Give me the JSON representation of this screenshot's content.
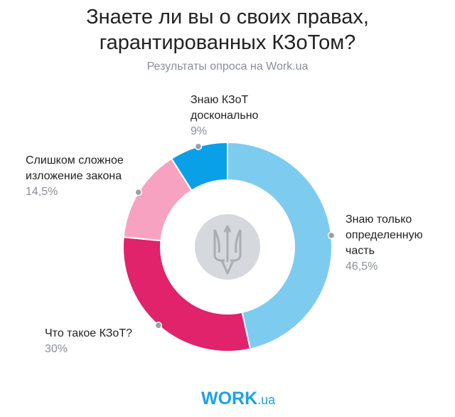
{
  "title_line1": "Знаете ли вы о своих правах,",
  "title_line2": "гарантированных КЗоТом?",
  "subtitle": "Результаты опроса на Work.ua",
  "logo": {
    "main": "WORK",
    "suffix": ".ua"
  },
  "chart_data": {
    "type": "pie",
    "donut": true,
    "title": "Знаете ли вы о своих правах, гарантированных КЗоТом?",
    "slices": [
      {
        "label": "Знаю только определенную часть",
        "value": 46.5,
        "value_label": "46,5%",
        "color": "#7ecbf0",
        "lines": [
          "Знаю только",
          "определенную",
          "часть"
        ]
      },
      {
        "label": "Что такое КЗоТ?",
        "value": 30,
        "value_label": "30%",
        "color": "#e0236a",
        "lines": [
          "Что такое КЗоТ?"
        ]
      },
      {
        "label": "Слишком сложное изложение закона",
        "value": 14.5,
        "value_label": "14,5%",
        "color": "#f8a2c2",
        "lines": [
          "Слишком сложное",
          "изложение закона"
        ]
      },
      {
        "label": "Знаю КЗоТ досконально",
        "value": 9,
        "value_label": "9%",
        "color": "#0aa0e8",
        "lines": [
          "Знаю КЗоТ",
          "досконально"
        ]
      }
    ]
  }
}
